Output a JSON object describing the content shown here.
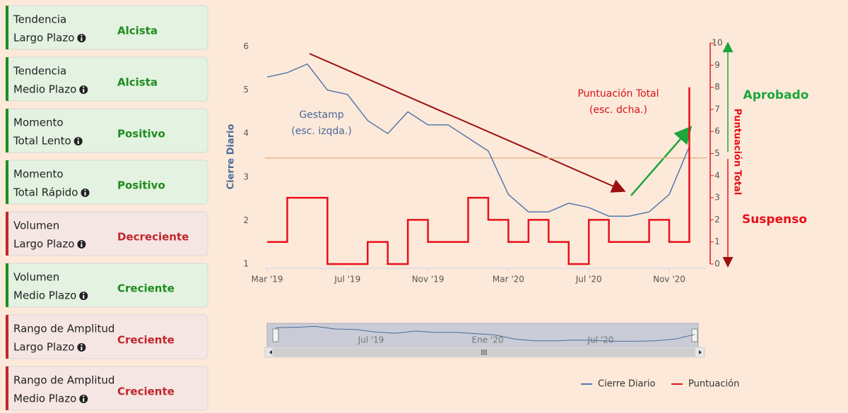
{
  "cards": [
    {
      "lines": [
        "Tendencia",
        "Largo Plazo"
      ],
      "status": "Alcista",
      "color": "#1e8c1e",
      "background": "#e3f2e1"
    },
    {
      "lines": [
        "Tendencia",
        "Medio Plazo"
      ],
      "status": "Alcista",
      "color": "#1e8c1e",
      "background": "#e3f2e1"
    },
    {
      "lines": [
        "Momento",
        "Total Lento"
      ],
      "status": "Positivo",
      "color": "#1e8c1e",
      "background": "#e3f2e1"
    },
    {
      "lines": [
        "Momento",
        "Total Rápido"
      ],
      "status": "Positivo",
      "color": "#1e8c1e",
      "background": "#e3f2e1"
    },
    {
      "lines": [
        "Volumen",
        "Largo Plazo"
      ],
      "status": "Decreciente",
      "color": "#c0272d",
      "background": "#f6e6e3"
    },
    {
      "lines": [
        "Volumen",
        "Medio Plazo"
      ],
      "status": "Creciente",
      "color": "#1e8c1e",
      "background": "#e3f2e1"
    },
    {
      "lines": [
        "Rango de Amplitud",
        "Largo Plazo"
      ],
      "status": "Creciente",
      "color": "#c0272d",
      "background": "#f6e6e3"
    },
    {
      "lines": [
        "Rango de Amplitud",
        "Medio Plazo"
      ],
      "status": "Creciente",
      "color": "#c0272d",
      "background": "#f6e6e3"
    }
  ],
  "chart_data": {
    "type": "line",
    "y_label": "Cierre Diario",
    "y2_label": "Puntuación Total",
    "x": [
      "2019-03",
      "2019-04",
      "2019-05",
      "2019-06",
      "2019-07",
      "2019-08",
      "2019-09",
      "2019-10",
      "2019-11",
      "2019-12",
      "2020-01",
      "2020-02",
      "2020-03",
      "2020-04",
      "2020-05",
      "2020-06",
      "2020-07",
      "2020-08",
      "2020-09",
      "2020-10",
      "2020-11",
      "2020-12"
    ],
    "xlim": [
      "2019-03",
      "2020-12"
    ],
    "xticks": [
      {
        "value": "2019-03",
        "label": "Mar '19"
      },
      {
        "value": "2019-07",
        "label": "Jul '19"
      },
      {
        "value": "2019-11",
        "label": "Nov '19"
      },
      {
        "value": "2020-03",
        "label": "Mar '20"
      },
      {
        "value": "2020-07",
        "label": "Jul '20"
      },
      {
        "value": "2020-11",
        "label": "Nov '20"
      }
    ],
    "ylim": [
      1,
      6
    ],
    "yticks": [
      1,
      2,
      3,
      4,
      5,
      6
    ],
    "y2lim": [
      0,
      10
    ],
    "y2ticks": [
      0,
      1,
      2,
      3,
      4,
      5,
      6,
      7,
      8,
      9,
      10
    ],
    "series": [
      {
        "name": "Cierre Diario",
        "color": "#5577aa",
        "values": [
          5.3,
          5.4,
          5.6,
          5.0,
          4.9,
          4.3,
          4.0,
          4.5,
          4.2,
          4.2,
          3.9,
          3.6,
          2.6,
          2.2,
          2.2,
          2.4,
          2.3,
          2.1,
          2.1,
          2.2,
          2.6,
          3.7
        ]
      },
      {
        "name": "Puntuación",
        "color": "#e8101a",
        "axis": "y2",
        "step": true,
        "values": [
          1,
          3,
          3,
          0,
          0,
          1,
          0,
          2,
          1,
          1,
          3,
          2,
          1,
          2,
          1,
          0,
          2,
          1,
          1,
          2,
          1,
          8
        ]
      }
    ],
    "reference_line": {
      "value": 4.8,
      "axis": "y2",
      "color": "#e8b48a"
    },
    "annotations": [
      {
        "lines": [
          "Gestamp",
          "(esc. izqda.)"
        ],
        "color": "#4a6a9a"
      },
      {
        "lines": [
          "Puntuación Total",
          "(esc. dcha.)"
        ],
        "color": "#d8101a"
      },
      {
        "lines": [
          "Aprobado"
        ],
        "color": "#1ea53c"
      },
      {
        "lines": [
          "Suspenso"
        ],
        "color": "#e8101a"
      }
    ],
    "navigator": {
      "labels": [
        "Jul '19",
        "Ene '20",
        "Jul '20"
      ]
    }
  }
}
